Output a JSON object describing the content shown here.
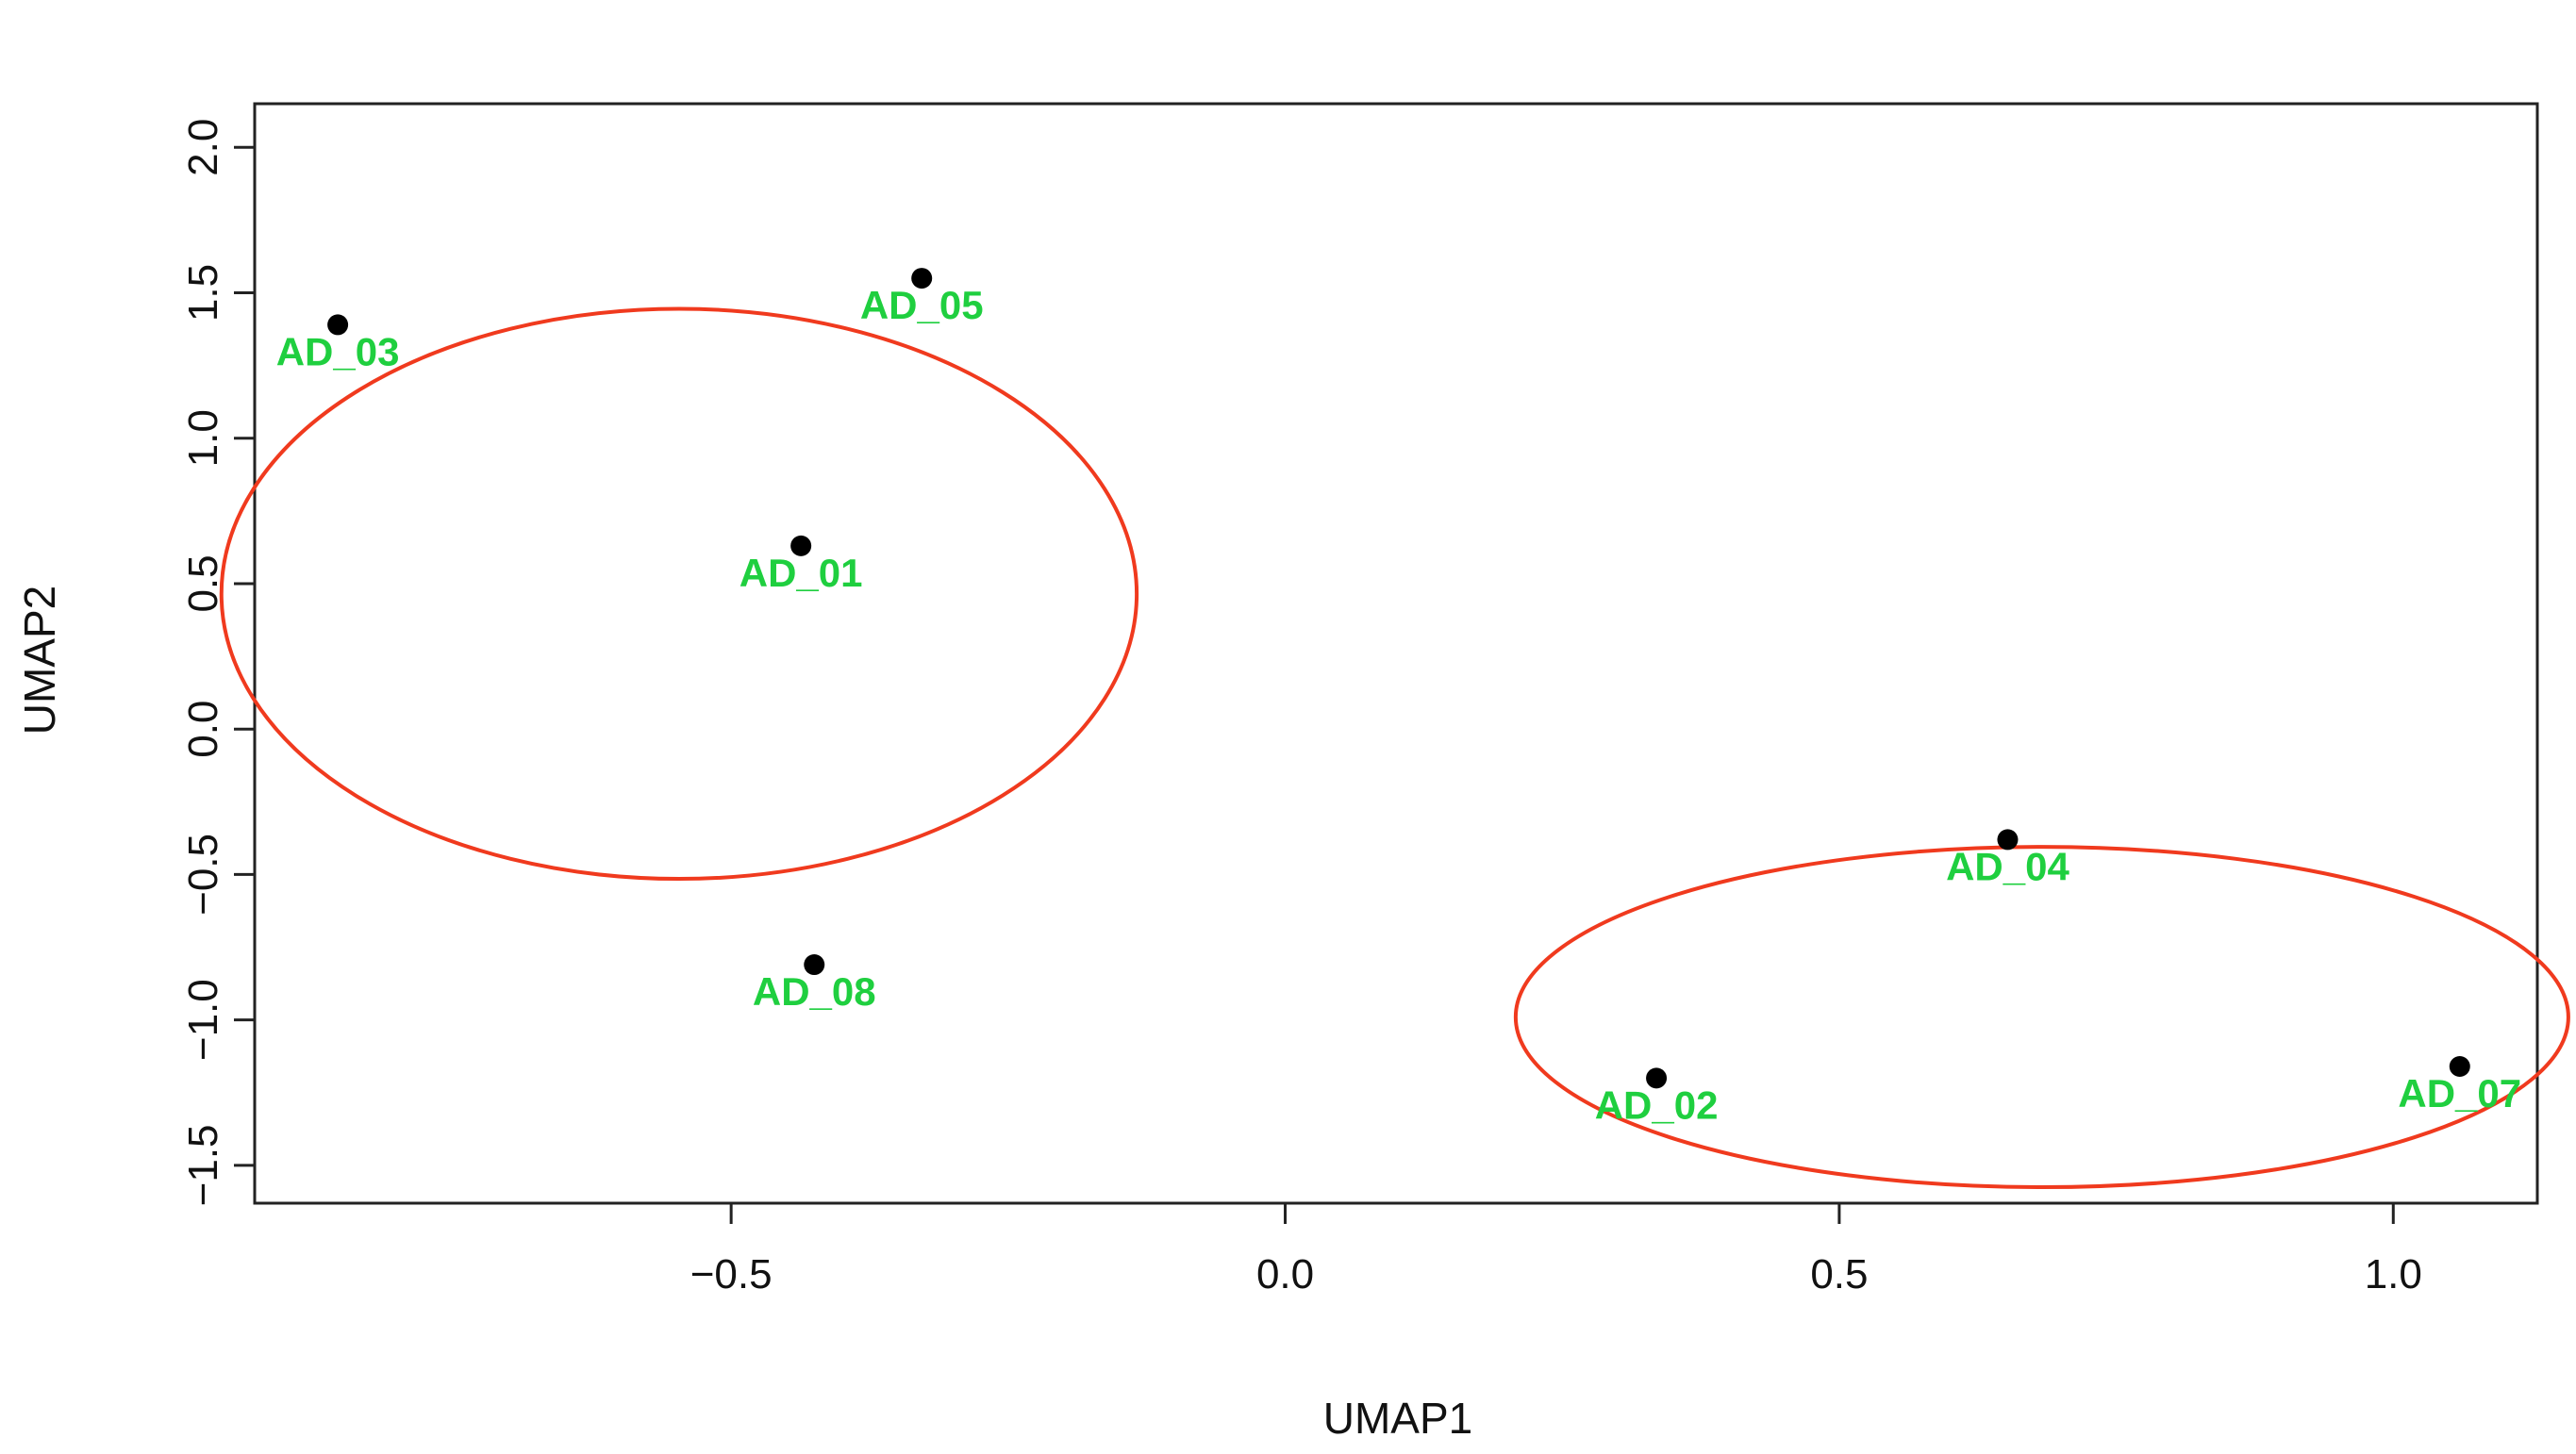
{
  "chart_data": {
    "type": "scatter",
    "title": "",
    "xlabel": "UMAP1",
    "ylabel": "UMAP2",
    "xlim": [
      -0.93,
      1.13
    ],
    "ylim": [
      -1.63,
      2.15
    ],
    "x_ticks": [
      -0.5,
      0.0,
      0.5,
      1.0
    ],
    "x_tick_labels": [
      "−0.5",
      "0.0",
      "0.5",
      "1.0"
    ],
    "y_ticks": [
      -1.5,
      -1.0,
      -0.5,
      0.0,
      0.5,
      1.0,
      1.5,
      2.0
    ],
    "y_tick_labels": [
      "−1.5",
      "−1.0",
      "−0.5",
      "0.0",
      "0.5",
      "1.0",
      "1.5",
      "2.0"
    ],
    "grid": false,
    "legend": "none",
    "series": [
      {
        "points": [
          {
            "label": "AD_03",
            "x": -0.855,
            "y": 1.39
          },
          {
            "label": "AD_05",
            "x": -0.328,
            "y": 1.55
          },
          {
            "label": "AD_01",
            "x": -0.437,
            "y": 0.63
          },
          {
            "label": "AD_08",
            "x": -0.425,
            "y": -0.81
          },
          {
            "label": "AD_04",
            "x": 0.652,
            "y": -0.38
          },
          {
            "label": "AD_02",
            "x": 0.335,
            "y": -1.2
          },
          {
            "label": "AD_07",
            "x": 1.06,
            "y": -1.16
          }
        ]
      }
    ],
    "annotations": [
      {
        "shape": "ellipse",
        "cx": -0.547,
        "cy": 0.465,
        "rx": 0.413,
        "ry": 1.96
      },
      {
        "shape": "ellipse",
        "cx": 0.683,
        "cy": -0.99,
        "rx": 0.475,
        "ry": 1.17
      }
    ]
  },
  "colors": {
    "point": "#000000",
    "label": "#1fcf3f",
    "ellipse": "#f03a1e",
    "axis": "#222222"
  }
}
